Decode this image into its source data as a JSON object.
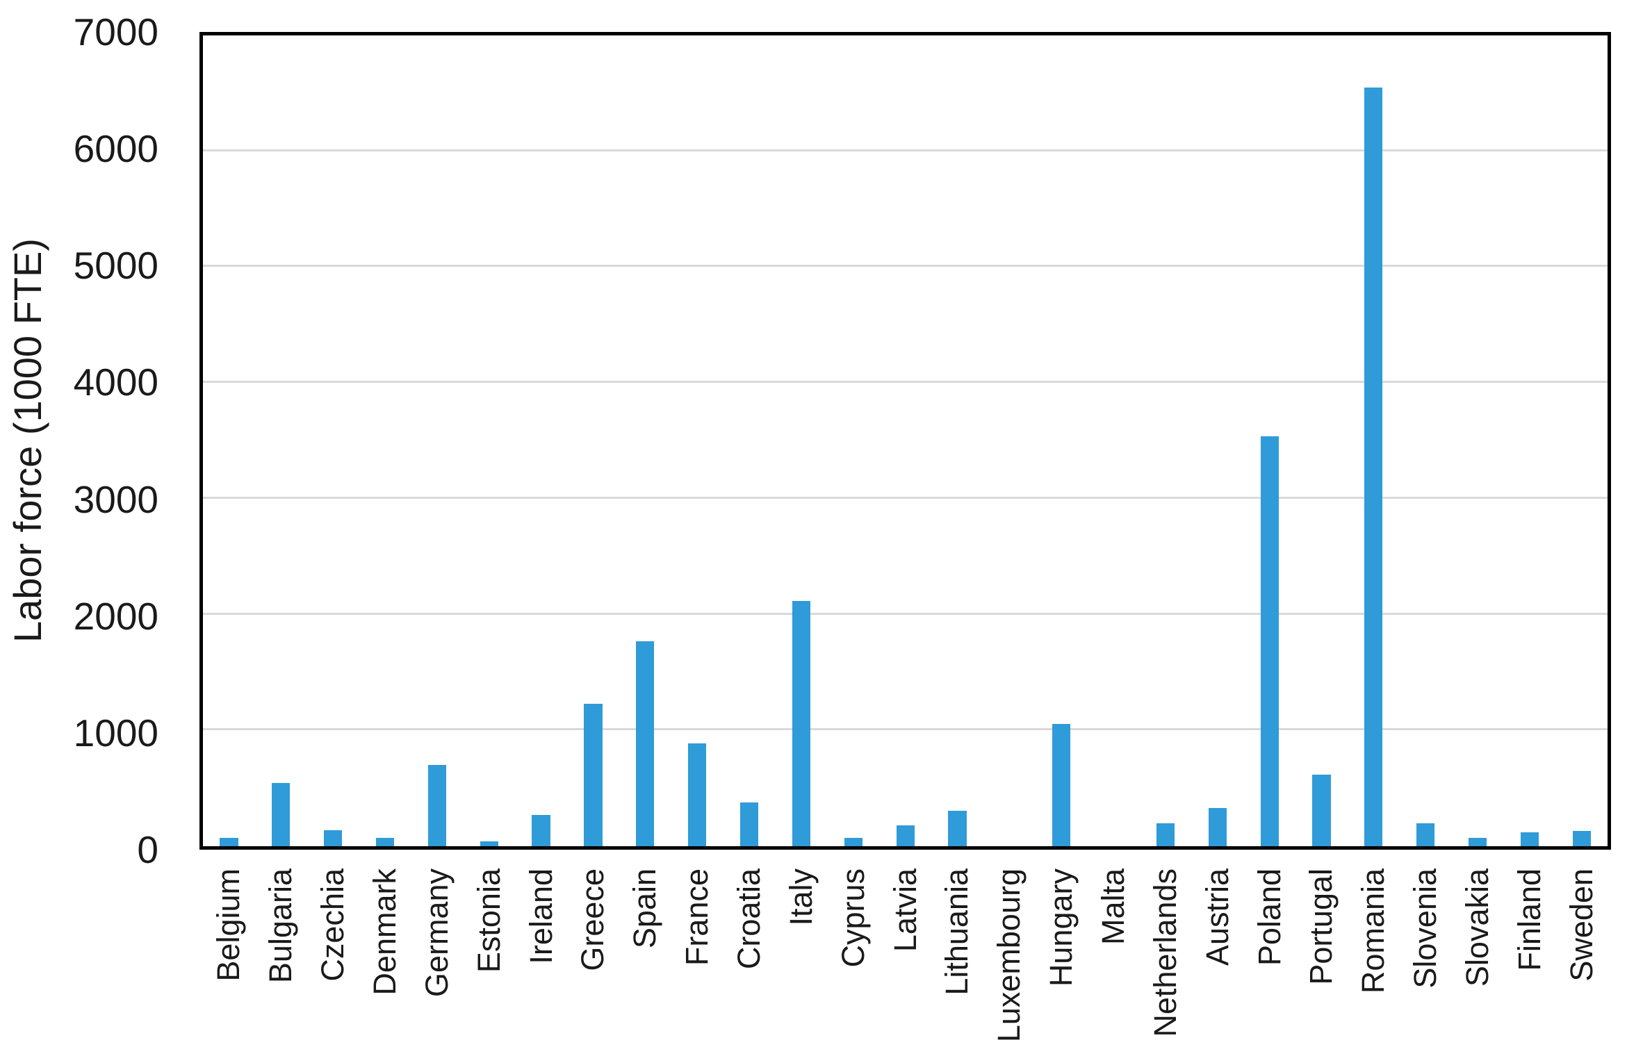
{
  "chart_data": {
    "type": "bar",
    "title": "",
    "xlabel": "",
    "ylabel": "Labor force (1000 FTE)",
    "ylim": [
      0,
      7000
    ],
    "yticks": [
      0,
      1000,
      2000,
      3000,
      4000,
      5000,
      6000,
      7000
    ],
    "grid": "horizontal",
    "legend": "none",
    "bar_color": "#2f9bd8",
    "gridline_color": "#d9d9d9",
    "axis_color": "#000000",
    "categories": [
      "Belgium",
      "Bulgaria",
      "Czechia",
      "Denmark",
      "Germany",
      "Estonia",
      "Ireland",
      "Greece",
      "Spain",
      "France",
      "Croatia",
      "Italy",
      "Cyprus",
      "Latvia",
      "Lithuania",
      "Luxembourg",
      "Hungary",
      "Malta",
      "Netherlands",
      "Austria",
      "Poland",
      "Portugal",
      "Romania",
      "Slovenia",
      "Slovakia",
      "Finland",
      "Sweden"
    ],
    "values": [
      70,
      545,
      140,
      70,
      700,
      45,
      270,
      1230,
      1770,
      890,
      375,
      2120,
      70,
      180,
      305,
      0,
      1055,
      0,
      200,
      330,
      3540,
      620,
      6550,
      200,
      70,
      120,
      135
    ]
  }
}
